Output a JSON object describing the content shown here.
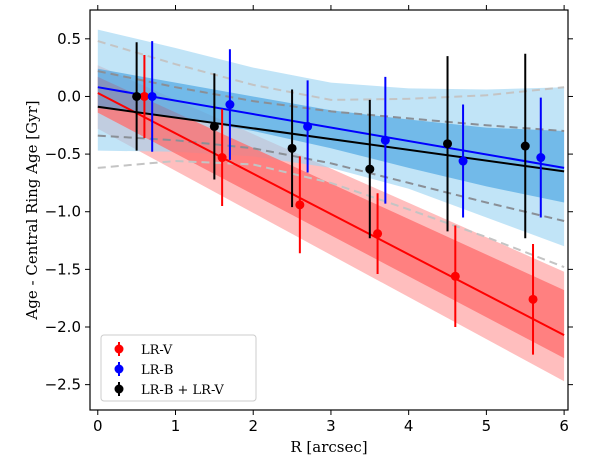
{
  "chart_data": {
    "type": "scatter",
    "xlabel": "R [arcsec]",
    "ylabel": "Age - Central Ring Age [Gyr]",
    "xlim": [
      -0.1,
      6.05
    ],
    "ylim": [
      -2.72,
      0.75
    ],
    "xticks": [
      0,
      1,
      2,
      3,
      4,
      5,
      6
    ],
    "xtick_labels": [
      "0",
      "1",
      "2",
      "3",
      "4",
      "5",
      "6"
    ],
    "yticks": [
      0.5,
      0.0,
      -0.5,
      -1.0,
      -1.5,
      -2.0,
      -2.5
    ],
    "ytick_labels": [
      "0.5",
      "0.0",
      "−0.5",
      "−1.0",
      "−1.5",
      "−2.0",
      "−2.5"
    ],
    "grid": false,
    "legend_position": "lower-left",
    "series": [
      {
        "name": "LR-V",
        "color": "#ff0000",
        "points": [
          {
            "x": 0.6,
            "y": 0.0,
            "err": 0.36
          },
          {
            "x": 1.6,
            "y": -0.53,
            "err": 0.42
          },
          {
            "x": 2.6,
            "y": -0.94,
            "err": 0.42
          },
          {
            "x": 3.6,
            "y": -1.19,
            "err": 0.35
          },
          {
            "x": 4.6,
            "y": -1.56,
            "err": 0.44
          },
          {
            "x": 5.6,
            "y": -1.76,
            "err": 0.48
          }
        ],
        "fit": {
          "x": [
            0,
            6
          ],
          "y": [
            0.03,
            -2.07
          ]
        },
        "band_inner": {
          "x": [
            0,
            6
          ],
          "upper": [
            0.17,
            -1.68
          ],
          "lower": [
            -0.14,
            -2.27
          ]
        },
        "band_outer": {
          "x": [
            0,
            6
          ],
          "upper": [
            0.27,
            -1.52
          ],
          "lower": [
            -0.28,
            -2.47
          ]
        }
      },
      {
        "name": "LR-B",
        "color": "#0000ff",
        "points": [
          {
            "x": 0.7,
            "y": 0.0,
            "err": 0.48
          },
          {
            "x": 1.7,
            "y": -0.07,
            "err": 0.48
          },
          {
            "x": 2.7,
            "y": -0.26,
            "err": 0.4
          },
          {
            "x": 3.7,
            "y": -0.38,
            "err": 0.55
          },
          {
            "x": 4.7,
            "y": -0.56,
            "err": 0.49
          },
          {
            "x": 5.7,
            "y": -0.53,
            "err": 0.52
          }
        ],
        "fit": {
          "x": [
            0,
            6
          ],
          "y": [
            0.08,
            -0.62
          ]
        },
        "band_inner": {
          "x": [
            0,
            1,
            2,
            3,
            4,
            5,
            6
          ],
          "upper": [
            0.24,
            0.12,
            0.0,
            -0.12,
            -0.2,
            -0.27,
            -0.3
          ],
          "lower": [
            -0.1,
            -0.18,
            -0.3,
            -0.45,
            -0.62,
            -0.78,
            -0.92
          ]
        },
        "band_outer": {
          "x": [
            0,
            1,
            2,
            3,
            4,
            5,
            6
          ],
          "upper": [
            0.58,
            0.42,
            0.25,
            0.12,
            0.07,
            0.06,
            0.08
          ],
          "lower": [
            -0.47,
            -0.48,
            -0.52,
            -0.62,
            -0.8,
            -1.05,
            -1.3
          ]
        }
      },
      {
        "name": "LR-B + LR-V",
        "color": "#000000",
        "points": [
          {
            "x": 0.5,
            "y": 0.0,
            "err": 0.47
          },
          {
            "x": 1.5,
            "y": -0.26,
            "err": 0.46
          },
          {
            "x": 2.5,
            "y": -0.45,
            "err": 0.51
          },
          {
            "x": 3.5,
            "y": -0.63,
            "err": 0.6
          },
          {
            "x": 4.5,
            "y": -0.41,
            "err": 0.76
          },
          {
            "x": 5.5,
            "y": -0.43,
            "err": 0.8
          }
        ],
        "fit": {
          "x": [
            0,
            6
          ],
          "y": [
            -0.09,
            -0.65
          ]
        },
        "envelopes": [
          {
            "x": [
              0,
              1,
              2,
              3,
              4,
              5,
              6
            ],
            "y": [
              0.48,
              0.28,
              0.1,
              -0.03,
              -0.02,
              0.01,
              0.08
            ]
          },
          {
            "x": [
              0,
              1,
              2,
              3,
              4,
              5,
              6
            ],
            "y": [
              0.22,
              0.08,
              -0.04,
              -0.13,
              -0.19,
              -0.25,
              -0.3
            ]
          },
          {
            "x": [
              0,
              1,
              2,
              3,
              4,
              5,
              6
            ],
            "y": [
              -0.34,
              -0.38,
              -0.45,
              -0.58,
              -0.75,
              -0.92,
              -1.08
            ]
          },
          {
            "x": [
              0,
              1,
              2,
              3,
              4,
              5,
              6
            ],
            "y": [
              -0.62,
              -0.56,
              -0.59,
              -0.75,
              -0.98,
              -1.22,
              -1.48
            ]
          }
        ]
      }
    ]
  }
}
